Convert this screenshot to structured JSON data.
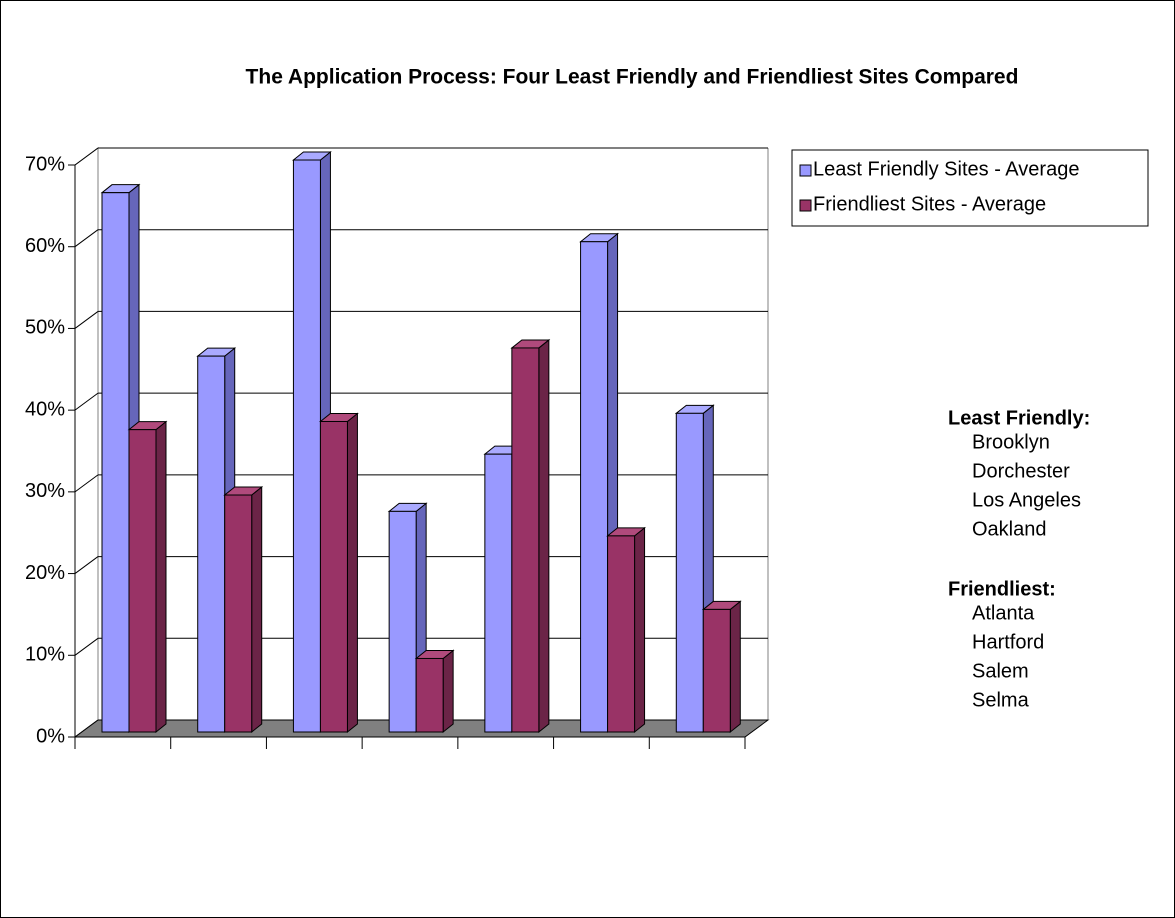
{
  "chart_data": {
    "type": "bar3d",
    "title": "The Application Process: Four Least Friendly and Friendliest Sites Compared",
    "categories": [
      null,
      null,
      null,
      null,
      null,
      null,
      null
    ],
    "series": [
      {
        "name": "Least Friendly Sites - Average",
        "color": "#9999ff",
        "values": [
          66,
          46,
          70,
          27,
          34,
          60,
          39
        ]
      },
      {
        "name": "Friendliest Sites - Average",
        "color": "#993366",
        "values": [
          37,
          29,
          38,
          9,
          47,
          24,
          15
        ]
      }
    ],
    "ylim": [
      0,
      70
    ],
    "yticks": [
      {
        "value": 0,
        "label": "0%"
      },
      {
        "value": 10,
        "label": "10%"
      },
      {
        "value": 20,
        "label": "20%"
      },
      {
        "value": 30,
        "label": "30%"
      },
      {
        "value": 40,
        "label": "40%"
      },
      {
        "value": 50,
        "label": "50%"
      },
      {
        "value": 60,
        "label": "60%"
      },
      {
        "value": 70,
        "label": "70%"
      }
    ],
    "grid": true,
    "legend": "top-right",
    "annotations": {
      "least_friendly": {
        "heading": "Least Friendly:",
        "sites": [
          "Brooklyn",
          "Dorchester",
          "Los Angeles",
          "Oakland"
        ]
      },
      "friendliest": {
        "heading": "Friendliest:",
        "sites": [
          "Atlanta",
          "Hartford",
          "Salem",
          "Selma"
        ]
      }
    }
  }
}
